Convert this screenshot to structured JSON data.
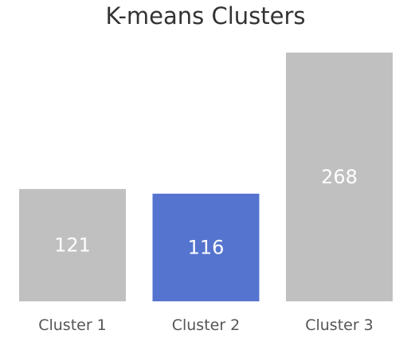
{
  "chart_data": {
    "type": "bar",
    "title": "K-means Clusters",
    "xlabel": "",
    "ylabel": "",
    "categories": [
      "Cluster 1",
      "Cluster 2",
      "Cluster 3"
    ],
    "values": [
      121,
      116,
      268
    ],
    "data_labels": [
      "121",
      "116",
      "268"
    ],
    "highlight_index": 1,
    "ylim": [
      0,
      268
    ],
    "grid": false,
    "legend": "none"
  },
  "colors": {
    "bar_default": "#c0c0c0",
    "bar_highlight": "#5574cf",
    "value_text": "#ffffff",
    "title_text": "#333333",
    "tick_text": "#555555"
  }
}
